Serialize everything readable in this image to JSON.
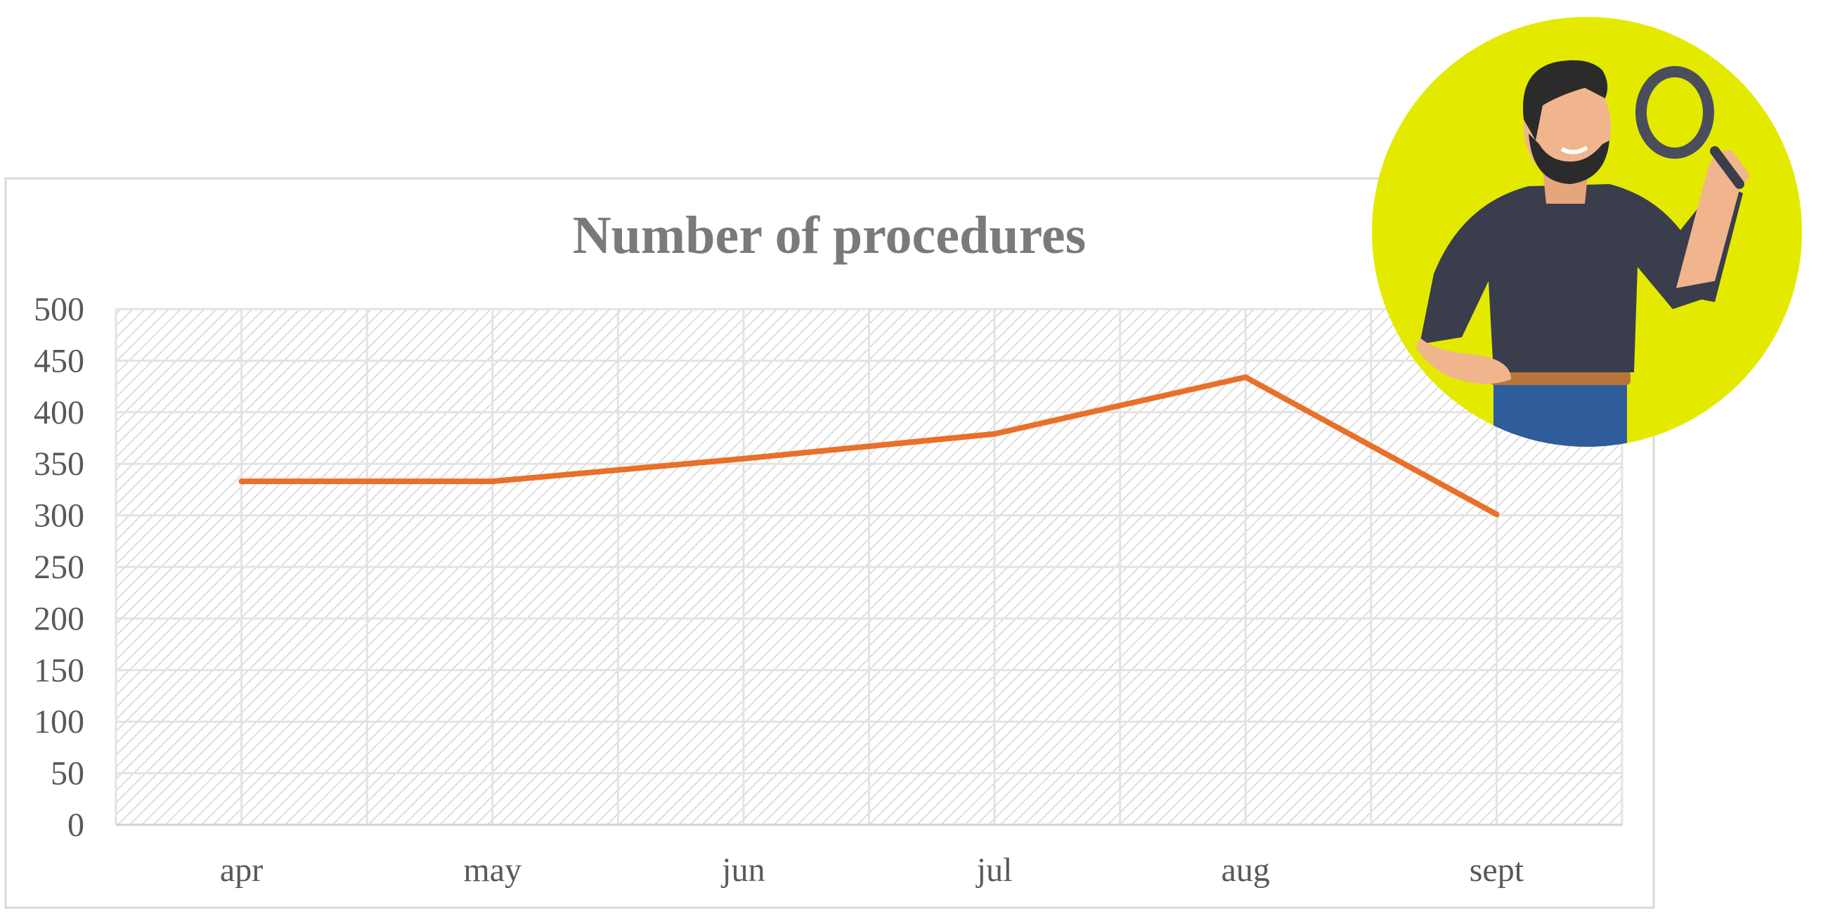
{
  "chart_data": {
    "type": "line",
    "title": "Number of procedures",
    "categories": [
      "apr",
      "may",
      "jun",
      "jul",
      "aug",
      "sept"
    ],
    "series": [
      {
        "values": [
          333,
          333,
          355,
          379,
          434,
          301
        ]
      }
    ],
    "yticks": [
      "0",
      "50",
      "100",
      "150",
      "200",
      "250",
      "300",
      "350",
      "400",
      "450",
      "500"
    ],
    "ylim": [
      0,
      500
    ],
    "grid": true,
    "legend": "none",
    "colors": {
      "line": "#e8702a",
      "grid": "#e3e3e3",
      "hatch": "#d4d4d4",
      "badge": "#e3ea00",
      "shirt": "#3a3d4c",
      "skin": "#f0b58d",
      "hair": "#2b2b2b",
      "jeans": "#2f5c9a",
      "magnifier": "#4a4e5c"
    }
  },
  "illustration": {
    "icon": "man-with-magnifying-glass-icon"
  }
}
